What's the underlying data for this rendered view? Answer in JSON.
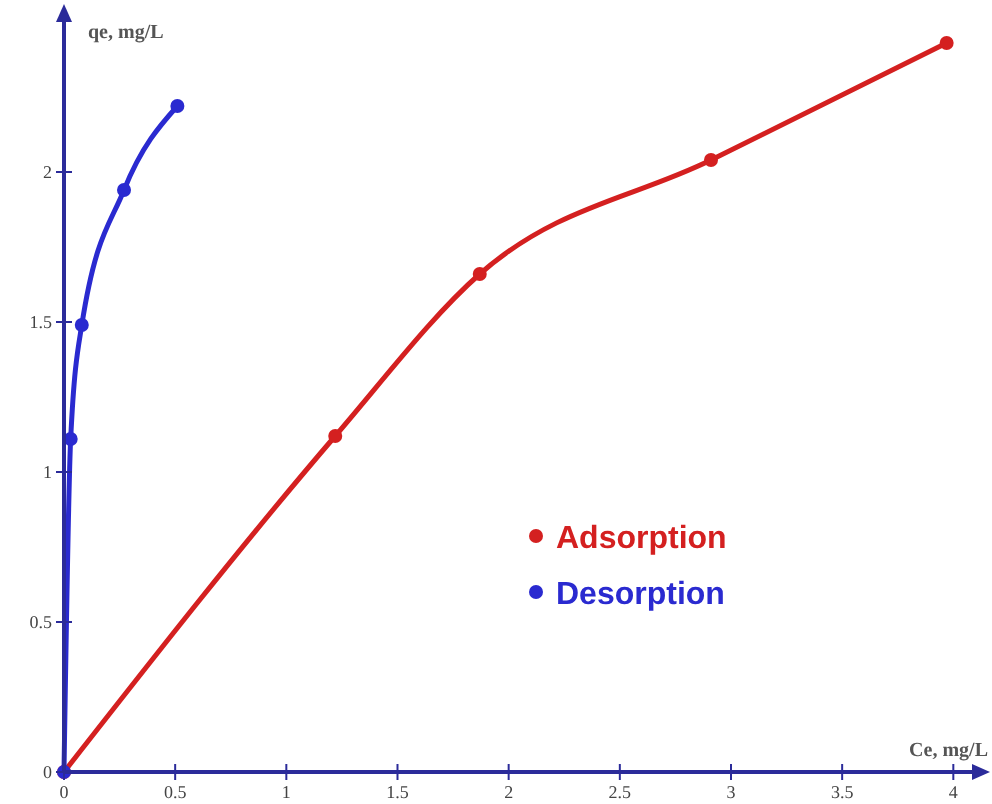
{
  "chart_data": {
    "type": "line",
    "xlabel": "Ce, mg/L",
    "ylabel": "qe, mg/L",
    "xlim": [
      0,
      4.12
    ],
    "ylim": [
      0,
      2.5
    ],
    "xticks": [
      0,
      0.5,
      1,
      1.5,
      2,
      2.5,
      3,
      3.5,
      4
    ],
    "yticks": [
      0,
      0.5,
      1,
      1.5,
      2
    ],
    "grid": false,
    "legend": "right",
    "marker": "circle",
    "line_style": "solid",
    "series": [
      {
        "name": "Adsorption",
        "color": "#d42020",
        "x": [
          0,
          1.22,
          1.87,
          2.91,
          3.97
        ],
        "values": [
          0,
          1.12,
          1.66,
          2.04,
          2.43
        ]
      },
      {
        "name": "Desorption",
        "color": "#2a2ad0",
        "x": [
          0,
          0.03,
          0.08,
          0.27,
          0.51
        ],
        "values": [
          0,
          1.11,
          1.49,
          1.94,
          2.22
        ]
      }
    ]
  }
}
